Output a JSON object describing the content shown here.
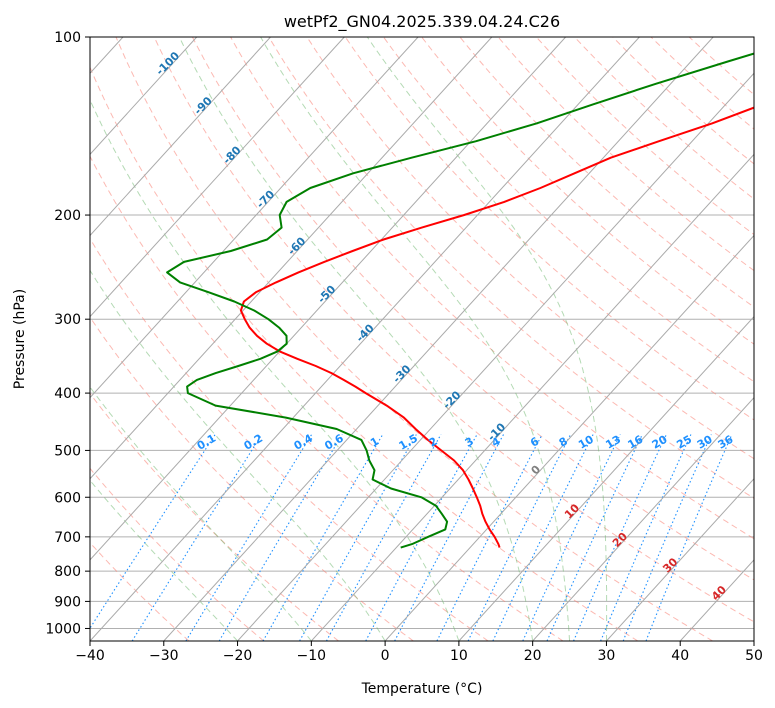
{
  "chart_data": {
    "type": "line",
    "title": "wetPf2_GN04.2025.339.04.24.C26",
    "xlabel": "Temperature (°C)",
    "ylabel": "Pressure (hPa)",
    "xlim": [
      -40,
      50
    ],
    "ylim": [
      1050,
      100
    ],
    "y_scale": "log",
    "grid": true,
    "x_ticks": [
      -40,
      -30,
      -20,
      -10,
      0,
      10,
      20,
      30,
      40,
      50
    ],
    "y_ticks": [
      100,
      200,
      300,
      400,
      500,
      600,
      700,
      800,
      900,
      1000
    ],
    "skew_lines": {
      "color": "#aaaaaa",
      "isotherms_c": [
        -160,
        -150,
        -140,
        -130,
        -120,
        -110,
        -100,
        -90,
        -80,
        -70,
        -60,
        -50,
        -40,
        -30,
        -20,
        -10,
        0,
        10,
        20,
        30,
        40,
        50
      ]
    },
    "dry_adiabats": {
      "color": "#fa8072",
      "theta_c": [
        -30,
        -20,
        -10,
        0,
        10,
        20,
        30,
        40,
        50,
        60,
        70,
        80,
        90,
        100,
        110,
        120,
        130,
        140,
        150,
        160,
        170,
        180,
        190
      ]
    },
    "moist_adiabats": {
      "color": "#6ab56a",
      "start_temps_c": [
        -20,
        -10,
        0,
        10,
        20,
        25,
        30
      ]
    },
    "mixing_ratio_lines": {
      "color": "#1e90ff",
      "values_gkg": [
        0.1,
        0.2,
        0.4,
        0.6,
        1,
        1.5,
        2,
        3,
        4,
        6,
        8,
        10,
        13,
        16,
        20,
        25,
        30,
        36
      ],
      "labels": [
        "0.1",
        "0.2",
        "0.4",
        "0.6",
        "1",
        "1.5",
        "2",
        "3",
        "4",
        "6",
        "8",
        "10",
        "13",
        "16",
        "20",
        "25",
        "30",
        "36"
      ],
      "label_pressure_hpa": 490
    },
    "isotherm_labels": {
      "color": "#1f77b4",
      "items": [
        {
          "text": "-100",
          "t": -100,
          "p": 112
        },
        {
          "text": "-90",
          "t": -90,
          "p": 132
        },
        {
          "text": "-80",
          "t": -80,
          "p": 160
        },
        {
          "text": "-70",
          "t": -70,
          "p": 190
        },
        {
          "text": "-60",
          "t": -60,
          "p": 228
        },
        {
          "text": "-50",
          "t": -50,
          "p": 275
        },
        {
          "text": "-40",
          "t": -40,
          "p": 320
        },
        {
          "text": "-30",
          "t": -30,
          "p": 375
        },
        {
          "text": "-20",
          "t": -20,
          "p": 415
        },
        {
          "text": "-10",
          "t": -10,
          "p": 470
        }
      ]
    },
    "warm_isotherm_labels": [
      {
        "text": "0",
        "t": 0,
        "p": 545,
        "color": "#808080"
      },
      {
        "text": "10",
        "t": 10,
        "p": 640,
        "color": "#d62728"
      },
      {
        "text": "20",
        "t": 20,
        "p": 715,
        "color": "#d62728"
      },
      {
        "text": "30",
        "t": 30,
        "p": 790,
        "color": "#d62728"
      },
      {
        "text": "40",
        "t": 40,
        "p": 880,
        "color": "#d62728"
      }
    ],
    "series": [
      {
        "color": "#ff0000",
        "points": [
          {
            "p": 100,
            "t": -7.0
          },
          {
            "p": 110,
            "t": -9.0
          },
          {
            "p": 120,
            "t": -12.0
          },
          {
            "p": 130,
            "t": -15.0
          },
          {
            "p": 140,
            "t": -19.5
          },
          {
            "p": 150,
            "t": -24.5
          },
          {
            "p": 160,
            "t": -29.0
          },
          {
            "p": 170,
            "t": -32.0
          },
          {
            "p": 180,
            "t": -34.8
          },
          {
            "p": 190,
            "t": -38.0
          },
          {
            "p": 200,
            "t": -41.8
          },
          {
            "p": 210,
            "t": -46.0
          },
          {
            "p": 220,
            "t": -49.7
          },
          {
            "p": 230,
            "t": -52.5
          },
          {
            "p": 240,
            "t": -55.0
          },
          {
            "p": 250,
            "t": -57.2
          },
          {
            "p": 260,
            "t": -59.0
          },
          {
            "p": 270,
            "t": -60.5
          },
          {
            "p": 280,
            "t": -61.0
          },
          {
            "p": 290,
            "t": -60.3
          },
          {
            "p": 300,
            "t": -58.7
          },
          {
            "p": 310,
            "t": -57.0
          },
          {
            "p": 320,
            "t": -55.0
          },
          {
            "p": 330,
            "t": -52.7
          },
          {
            "p": 340,
            "t": -50.0
          },
          {
            "p": 350,
            "t": -46.7
          },
          {
            "p": 360,
            "t": -43.3
          },
          {
            "p": 370,
            "t": -40.3
          },
          {
            "p": 380,
            "t": -37.8
          },
          {
            "p": 390,
            "t": -35.4
          },
          {
            "p": 400,
            "t": -33.2
          },
          {
            "p": 420,
            "t": -28.8
          },
          {
            "p": 440,
            "t": -25.0
          },
          {
            "p": 460,
            "t": -22.0
          },
          {
            "p": 480,
            "t": -19.0
          },
          {
            "p": 500,
            "t": -15.9
          },
          {
            "p": 520,
            "t": -12.9
          },
          {
            "p": 540,
            "t": -10.5
          },
          {
            "p": 560,
            "t": -8.6
          },
          {
            "p": 580,
            "t": -6.9
          },
          {
            "p": 600,
            "t": -5.3
          },
          {
            "p": 620,
            "t": -3.8
          },
          {
            "p": 640,
            "t": -2.5
          },
          {
            "p": 660,
            "t": -1.1
          },
          {
            "p": 680,
            "t": 0.4
          },
          {
            "p": 700,
            "t": 2.0
          },
          {
            "p": 720,
            "t": 3.4
          },
          {
            "p": 730,
            "t": 4.0
          }
        ]
      },
      {
        "color": "#008000",
        "points": [
          {
            "p": 100,
            "t": -17.0
          },
          {
            "p": 110,
            "t": -25.0
          },
          {
            "p": 120,
            "t": -32.0
          },
          {
            "p": 130,
            "t": -38.0
          },
          {
            "p": 140,
            "t": -43.3
          },
          {
            "p": 150,
            "t": -49.3
          },
          {
            "p": 160,
            "t": -56.0
          },
          {
            "p": 170,
            "t": -62.0
          },
          {
            "p": 180,
            "t": -66.0
          },
          {
            "p": 190,
            "t": -67.5
          },
          {
            "p": 200,
            "t": -66.8
          },
          {
            "p": 210,
            "t": -65.0
          },
          {
            "p": 220,
            "t": -65.5
          },
          {
            "p": 230,
            "t": -69.0
          },
          {
            "p": 240,
            "t": -74.0
          },
          {
            "p": 250,
            "t": -75.0
          },
          {
            "p": 260,
            "t": -72.0
          },
          {
            "p": 270,
            "t": -67.0
          },
          {
            "p": 280,
            "t": -62.3
          },
          {
            "p": 290,
            "t": -58.5
          },
          {
            "p": 300,
            "t": -55.5
          },
          {
            "p": 310,
            "t": -53.0
          },
          {
            "p": 320,
            "t": -51.0
          },
          {
            "p": 330,
            "t": -50.0
          },
          {
            "p": 340,
            "t": -50.3
          },
          {
            "p": 350,
            "t": -51.7
          },
          {
            "p": 360,
            "t": -53.8
          },
          {
            "p": 370,
            "t": -56.0
          },
          {
            "p": 380,
            "t": -57.7
          },
          {
            "p": 390,
            "t": -58.2
          },
          {
            "p": 400,
            "t": -57.3
          },
          {
            "p": 420,
            "t": -52.0
          },
          {
            "p": 440,
            "t": -41.0
          },
          {
            "p": 460,
            "t": -32.7
          },
          {
            "p": 480,
            "t": -28.0
          },
          {
            "p": 500,
            "t": -26.0
          },
          {
            "p": 520,
            "t": -24.4
          },
          {
            "p": 540,
            "t": -22.5
          },
          {
            "p": 560,
            "t": -21.6
          },
          {
            "p": 580,
            "t": -18.0
          },
          {
            "p": 600,
            "t": -12.8
          },
          {
            "p": 620,
            "t": -9.8
          },
          {
            "p": 640,
            "t": -8.0
          },
          {
            "p": 660,
            "t": -6.3
          },
          {
            "p": 680,
            "t": -5.6
          },
          {
            "p": 700,
            "t": -7.0
          },
          {
            "p": 720,
            "t": -8.3
          },
          {
            "p": 730,
            "t": -9.4
          }
        ]
      }
    ]
  }
}
